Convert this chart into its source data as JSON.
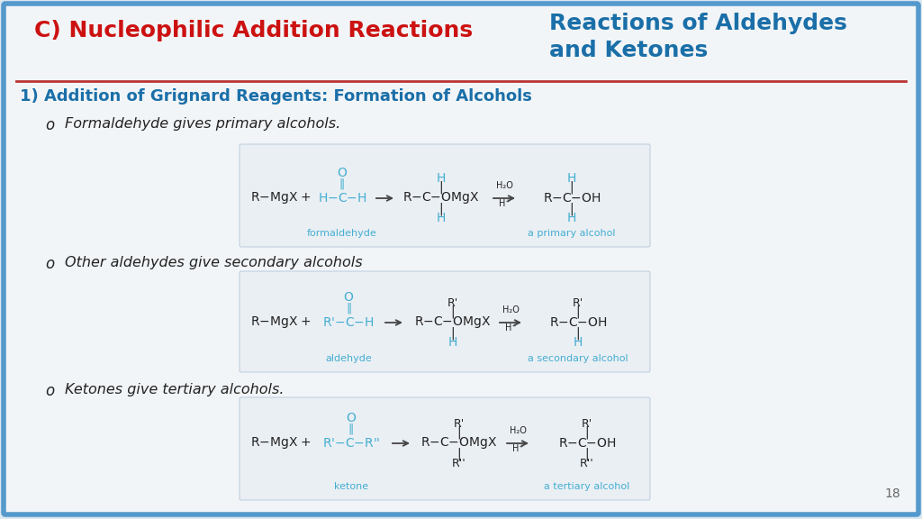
{
  "bg_color": "#dce8f0",
  "slide_bg": "#f2f5f8",
  "box_bg": "#eaeff4",
  "box_border": "#c0d0df",
  "title_left": "C) Nucleophilic Addition Reactions",
  "title_right_line1": "Reactions of Aldehydes",
  "title_right_line2": "and Ketones",
  "title_left_color": "#cc1111",
  "title_right_color": "#1a6fa8",
  "separator_color": "#bb3333",
  "section_title": "1) Addition of Grignard Reagents: Formation of Alcohols",
  "section_title_color": "#1a6fa8",
  "dark_color": "#222222",
  "cyan_color": "#44aed0",
  "slide_number": "18",
  "bullet1": "Formaldehyde gives primary alcohols.",
  "bullet2": "Other aldehydes give secondary alcohols",
  "bullet3": "Ketones give tertiary alcohols.",
  "label1a": "formaldehyde",
  "label1b": "a primary alcohol",
  "label2a": "aldehyde",
  "label2b": "a secondary alcohol",
  "label3a": "ketone",
  "label3b": "a tertiary alcohol",
  "outer_border_color": "#5599cc",
  "outer_border_lw": 4
}
